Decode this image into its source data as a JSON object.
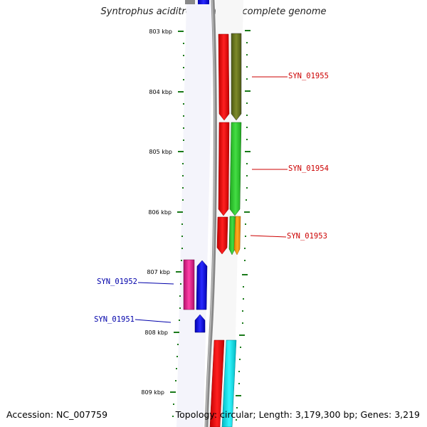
{
  "title": "Syntrophus aciditrophicus SB, complete genome",
  "footer": {
    "accession": "Accession: NC_007759",
    "summary": "Topology: circular; Length: 3,179,300 bp; Genes: 3,219"
  },
  "scale_labels": [
    "803 kbp",
    "804 kbp",
    "805 kbp",
    "806 kbp",
    "807 kbp",
    "808 kbp",
    "809 kbp"
  ],
  "colors": {
    "backbone": "#7a7a7a",
    "tick": "#1a7a1a",
    "forward_label": "#cc0000",
    "reverse_label": "#0000aa",
    "gene_red": "#ff0000",
    "gene_olive": "#6b7a1e",
    "gene_green": "#33cc33",
    "gene_orange": "#ff9900",
    "gene_magenta": "#e0208a",
    "gene_blue": "#0000ee",
    "gene_cyan": "#00e5ee"
  },
  "gene_labels": {
    "g1955": "SYN_01955",
    "g1954": "SYN_01954",
    "g1953": "SYN_01953",
    "g1952": "SYN_01952",
    "g1951": "SYN_01951"
  }
}
